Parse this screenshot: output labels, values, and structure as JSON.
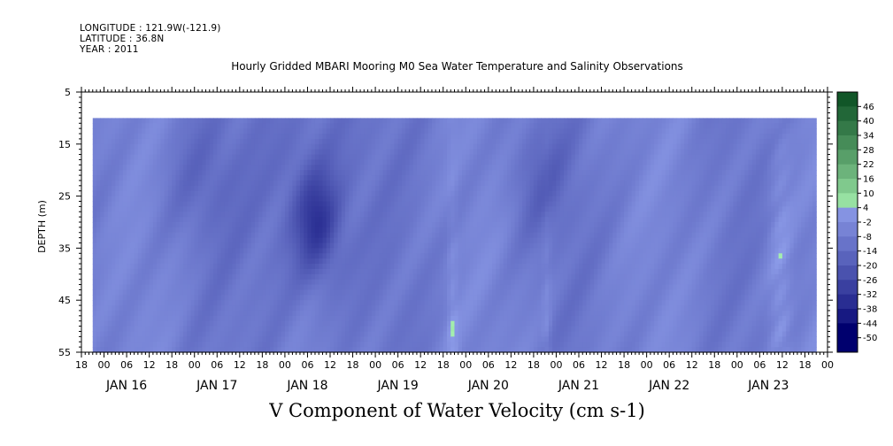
{
  "header": {
    "longitude": "LONGITUDE : 121.9W(-121.9)",
    "latitude": "LATITUDE : 36.8N",
    "year": "YEAR : 2011"
  },
  "chart_data": {
    "type": "heatmap",
    "title": "Hourly Gridded MBARI Mooring M0 Sea Water Temperature and Salinity Observations",
    "variable_title": "V Component of Water Velocity (cm s-1)",
    "ylabel": "DEPTH (m)",
    "ylim": [
      5,
      55
    ],
    "y_inverted": true,
    "y_ticks": [
      5,
      15,
      25,
      35,
      45,
      55
    ],
    "x_start": "2011-01-15T12:00",
    "x_end": "2011-01-23T18:00",
    "data_start": "2011-01-15T15:00",
    "data_end": "2011-01-23T15:00",
    "data_depth_top": 10,
    "data_depth_bottom": 55,
    "x_hour_labels": [
      "18",
      "00",
      "06",
      "12",
      "18",
      "00",
      "06",
      "12",
      "18",
      "00",
      "06",
      "12",
      "18",
      "00",
      "06",
      "12",
      "18",
      "00",
      "06",
      "12",
      "18",
      "00",
      "06",
      "12",
      "18",
      "00",
      "06",
      "12",
      "18",
      "00",
      "06",
      "12",
      "18",
      "00",
      "06",
      "12"
    ],
    "x_date_labels": [
      "JAN 16",
      "JAN 17",
      "JAN 18",
      "JAN 19",
      "JAN 20",
      "JAN 21",
      "JAN 22",
      "JAN 23"
    ],
    "colorbar": {
      "levels": [
        -50,
        -44,
        -38,
        -32,
        -26,
        -20,
        -14,
        -8,
        -2,
        4,
        10,
        16,
        22,
        28,
        34,
        40,
        46
      ],
      "labels": [
        "46",
        "40",
        "34",
        "28",
        "22",
        "16",
        "10",
        "4",
        "-2",
        "-8",
        "-14",
        "-20",
        "-26",
        "-32",
        "-38",
        "-44",
        "-50"
      ],
      "low_color": "#00006e",
      "mid_low_color": "#8c9be8",
      "mid_high_color": "#a6f0b0",
      "high_color": "#064a1e"
    },
    "observed_range": [
      -38,
      16
    ],
    "grid": false,
    "legend": "right"
  }
}
